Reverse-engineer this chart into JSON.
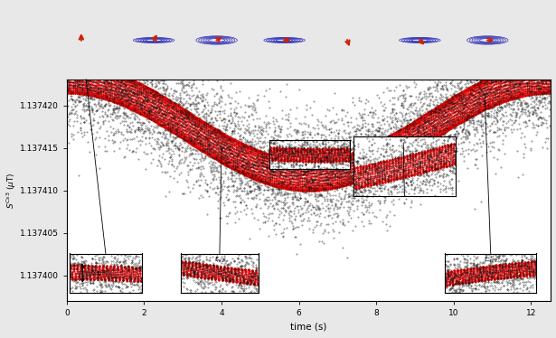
{
  "xlabel": "time (s)",
  "ylabel_latex": "$S^{Cs3}$ ($\\mu$T)",
  "background_color": "#e8e8e8",
  "main_bg": "#ffffff",
  "x_range": [
    0,
    12.5
  ],
  "y_range": [
    1.137397,
    1.137423
  ],
  "y_ticks": [
    1.1374,
    1.137405,
    1.13741,
    1.137415,
    1.13742
  ],
  "y_tick_labels": [
    "1.137400",
    "1.137405",
    "1.137410",
    "1.137415",
    "1.137420"
  ],
  "x_ticks": [
    0,
    2,
    4,
    6,
    8,
    10,
    12
  ],
  "data_color_black": "#111111",
  "data_color_red": "#dd0000",
  "base_value": 1.1374175,
  "slow_amplitude": 1.15e-05,
  "slow_period": 12.5,
  "fast_frequency": 22.0,
  "fast_amplitude": 1.8e-06,
  "noise_amplitude": 3e-06,
  "n_points": 8000,
  "red_markersize": 1.2,
  "black_markersize": 0.8
}
